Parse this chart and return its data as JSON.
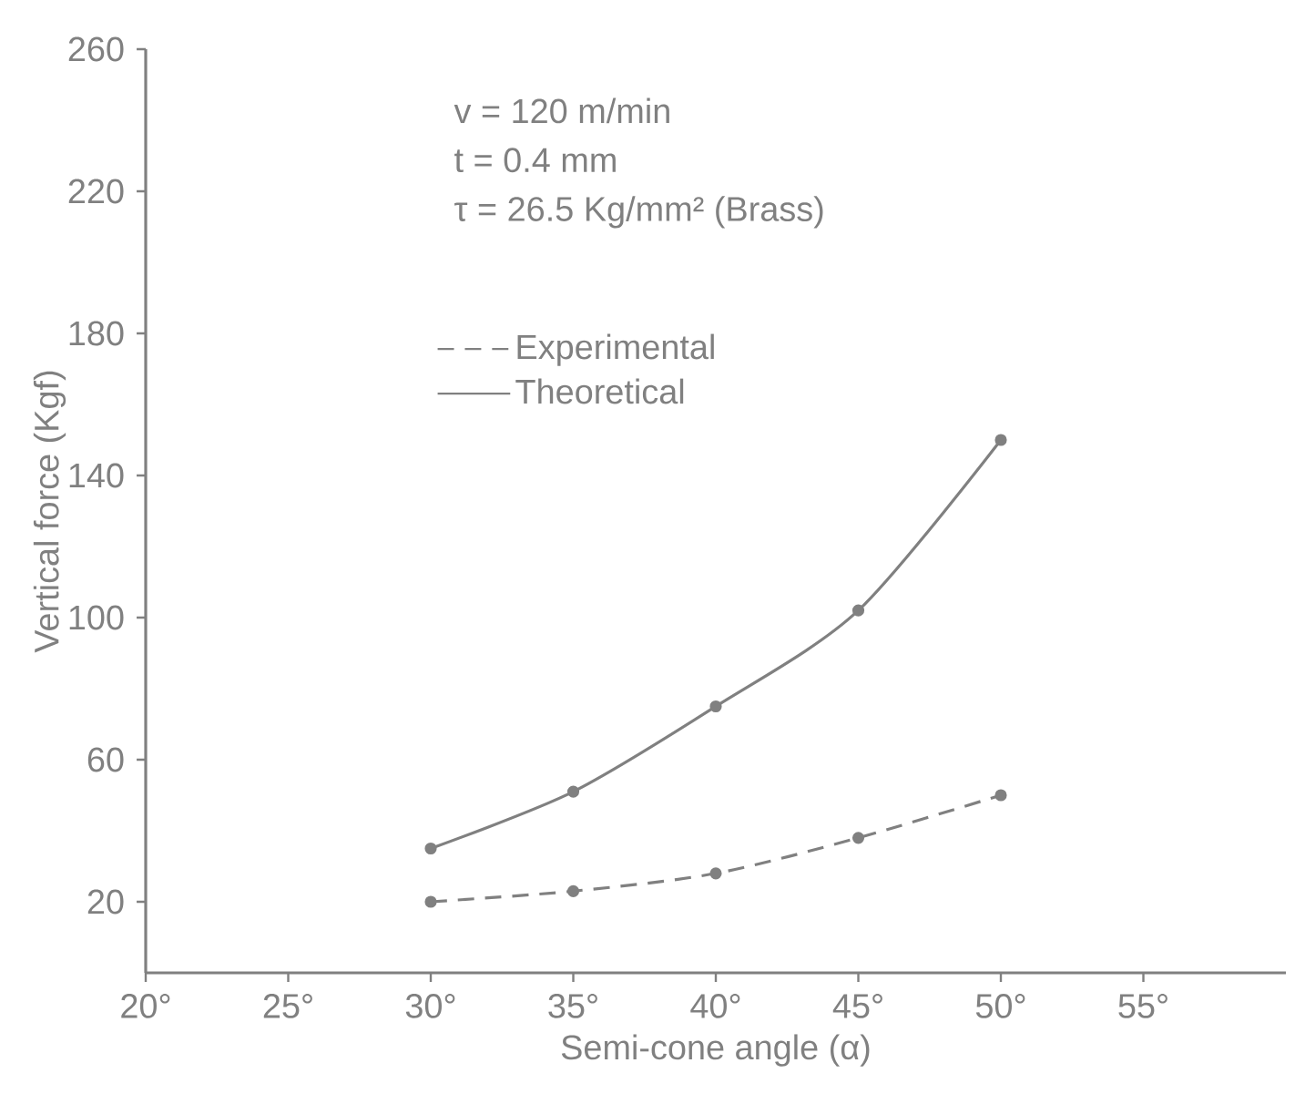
{
  "chart_data": {
    "type": "line",
    "xlabel": "Semi-cone angle (α)",
    "ylabel": "Vertical force (Kgf)",
    "annotations": [
      "v = 120  m/min",
      "t = 0.4  mm",
      "τ = 26.5  Kg/mm² (Brass)"
    ],
    "x": [
      30,
      35,
      40,
      45,
      50
    ],
    "series": [
      {
        "name": "Experimental",
        "color": "#808080",
        "line_style": "dashed",
        "values": [
          20,
          23,
          28,
          38,
          50
        ]
      },
      {
        "name": "Theoretical",
        "color": "#808080",
        "line_style": "solid",
        "values": [
          35,
          51,
          75,
          102,
          150
        ]
      }
    ],
    "xlim": [
      20,
      60
    ],
    "ylim": [
      0,
      260
    ],
    "xticks": [
      {
        "value": 20,
        "label": "20°"
      },
      {
        "value": 25,
        "label": "25°"
      },
      {
        "value": 30,
        "label": "30°"
      },
      {
        "value": 35,
        "label": "35°"
      },
      {
        "value": 40,
        "label": "40°"
      },
      {
        "value": 45,
        "label": "45°"
      },
      {
        "value": 50,
        "label": "50°"
      },
      {
        "value": 55,
        "label": "55°"
      }
    ],
    "yticks": [
      20,
      60,
      100,
      140,
      180,
      220,
      260
    ],
    "marker": "circle",
    "legend": "top left",
    "grid": false
  }
}
